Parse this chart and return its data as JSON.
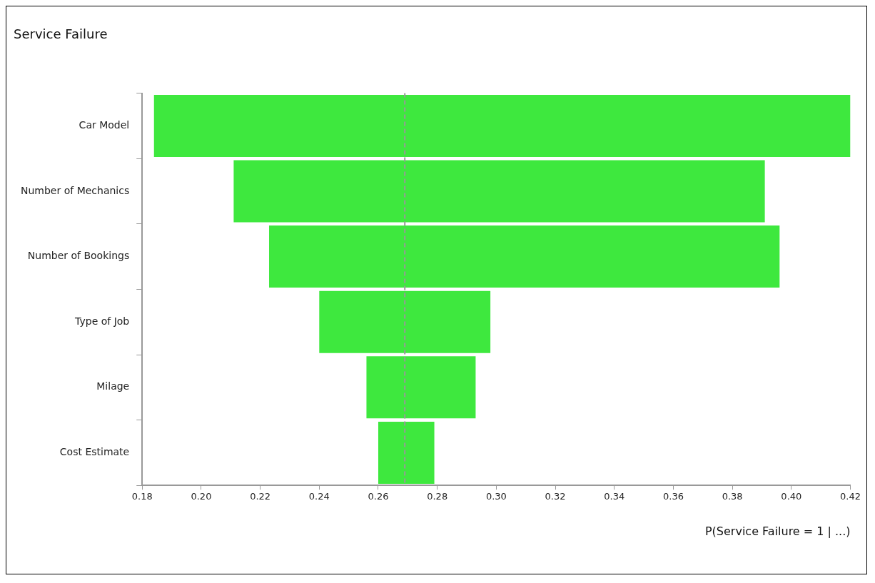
{
  "chart_data": {
    "type": "bar",
    "orientation": "horizontal",
    "title": "Service Failure",
    "xlabel": "P(Service Failure = 1 | ...)",
    "categories": [
      "Car Model",
      "Number of Mechanics",
      "Number of Bookings",
      "Type of Job",
      "Milage",
      "Cost Estimate"
    ],
    "base": [
      0.184,
      0.211,
      0.223,
      0.24,
      0.256,
      0.26
    ],
    "values": [
      0.236,
      0.18,
      0.173,
      0.058,
      0.037,
      0.019
    ],
    "color": "#3ee83e",
    "xlim": [
      0.18,
      0.42
    ],
    "xticks": [
      {
        "value": 0.18,
        "label": "0.18"
      },
      {
        "value": 0.2,
        "label": "0.20"
      },
      {
        "value": 0.22,
        "label": "0.22"
      },
      {
        "value": 0.24,
        "label": "0.24"
      },
      {
        "value": 0.26,
        "label": "0.26"
      },
      {
        "value": 0.28,
        "label": "0.28"
      },
      {
        "value": 0.3,
        "label": "0.30"
      },
      {
        "value": 0.32,
        "label": "0.32"
      },
      {
        "value": 0.34,
        "label": "0.34"
      },
      {
        "value": 0.36,
        "label": "0.36"
      },
      {
        "value": 0.38,
        "label": "0.38"
      },
      {
        "value": 0.4,
        "label": "0.40"
      },
      {
        "value": 0.42,
        "label": "0.42"
      }
    ],
    "ref_lines": [
      {
        "axis": "x",
        "value": 0.269,
        "color": "#999999",
        "line_style": "dashed"
      }
    ],
    "grid": false,
    "legend": false
  }
}
